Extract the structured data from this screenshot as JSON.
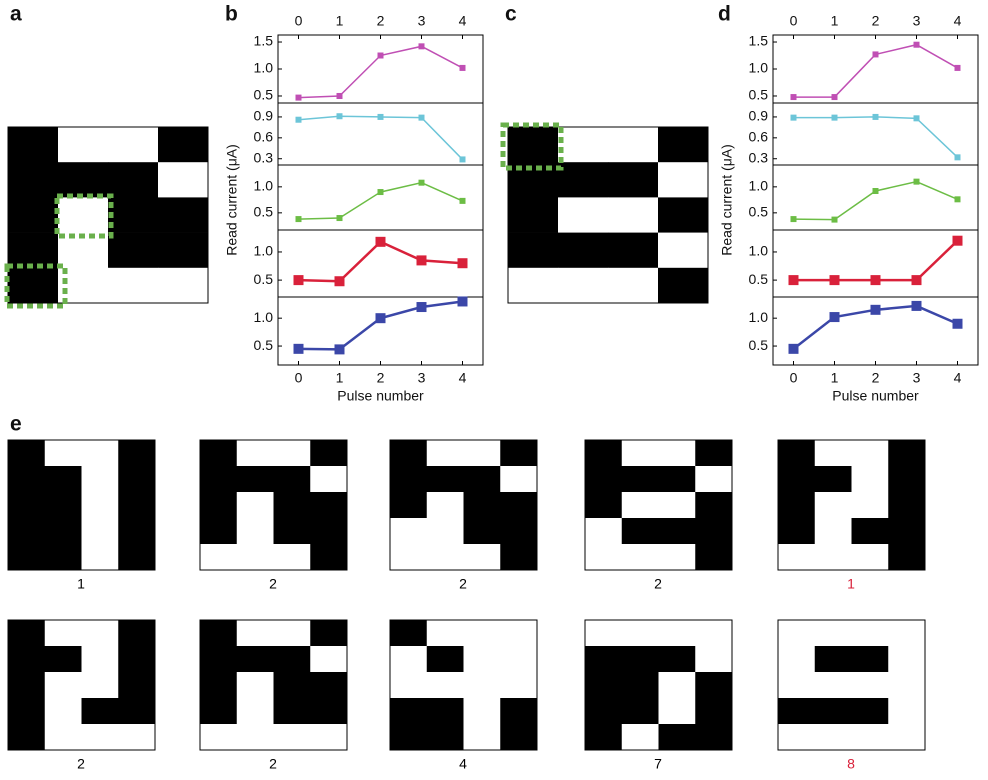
{
  "chart_data": [
    {
      "type": "line",
      "panel_label": "b",
      "x": [
        0,
        1,
        2,
        3,
        4
      ],
      "xlim": [
        -0.5,
        4.5
      ],
      "xticks": [
        0,
        1,
        2,
        3,
        4
      ],
      "xlabel": "Pulse number",
      "ylabel": "Read current (μA)",
      "subplots": [
        {
          "color": "#c04fb4",
          "ylim": [
            0.37,
            1.63
          ],
          "yticks": [
            0.5,
            {
              "value": 1,
              "label": "1.0"
            },
            1.5
          ],
          "values": [
            0.47,
            0.5,
            1.25,
            1.42,
            1.02
          ]
        },
        {
          "color": "#6cc5d8",
          "ylim": [
            0.21,
            1.1
          ],
          "yticks": [
            0.3,
            0.6,
            0.9
          ],
          "values": [
            0.86,
            0.91,
            0.9,
            0.89,
            0.29
          ]
        },
        {
          "color": "#6cbd45",
          "ylim": [
            0.17,
            1.42
          ],
          "yticks": [
            0.5,
            {
              "value": 1,
              "label": "1.0"
            }
          ],
          "values": [
            0.38,
            0.4,
            0.9,
            1.08,
            0.73
          ]
        },
        {
          "color": "#d9213a",
          "ylim": [
            0.2,
            1.39
          ],
          "yticks": [
            0.5,
            {
              "value": 1,
              "label": "1.0"
            }
          ],
          "values": [
            0.5,
            0.48,
            1.18,
            0.85,
            0.8
          ]
        },
        {
          "color": "#3b47a8",
          "ylim": [
            0.16,
            1.38
          ],
          "yticks": [
            0.5,
            {
              "value": 1,
              "label": "1.0"
            }
          ],
          "values": [
            0.45,
            0.44,
            1.0,
            1.2,
            1.3
          ]
        }
      ]
    },
    {
      "type": "line",
      "panel_label": "d",
      "x": [
        0,
        1,
        2,
        3,
        4
      ],
      "xlim": [
        -0.5,
        4.5
      ],
      "xticks": [
        0,
        1,
        2,
        3,
        4
      ],
      "xlabel": "Pulse number",
      "ylabel": "Read current (μA)",
      "subplots": [
        {
          "color": "#c04fb4",
          "ylim": [
            0.37,
            1.63
          ],
          "yticks": [
            0.5,
            {
              "value": 1,
              "label": "1.0"
            },
            1.5
          ],
          "values": [
            0.48,
            0.48,
            1.27,
            1.45,
            1.02
          ]
        },
        {
          "color": "#6cc5d8",
          "ylim": [
            0.21,
            1.1
          ],
          "yticks": [
            0.3,
            0.6,
            0.9
          ],
          "values": [
            0.89,
            0.89,
            0.9,
            0.88,
            0.32
          ]
        },
        {
          "color": "#6cbd45",
          "ylim": [
            0.17,
            1.42
          ],
          "yticks": [
            0.5,
            {
              "value": 1,
              "label": "1.0"
            }
          ],
          "values": [
            0.38,
            0.37,
            0.92,
            1.1,
            0.76
          ]
        },
        {
          "color": "#d9213a",
          "ylim": [
            0.2,
            1.39
          ],
          "yticks": [
            0.5,
            {
              "value": 1,
              "label": "1.0"
            }
          ],
          "values": [
            0.5,
            0.5,
            0.5,
            0.5,
            1.2
          ]
        },
        {
          "color": "#3b47a8",
          "ylim": [
            0.16,
            1.38
          ],
          "yticks": [
            0.5,
            {
              "value": 1,
              "label": "1.0"
            }
          ],
          "values": [
            0.45,
            1.02,
            1.15,
            1.22,
            0.9
          ]
        }
      ]
    }
  ],
  "images": [
    {
      "panel_label": "a",
      "cells": [
        [
          1,
          0,
          0,
          1
        ],
        [
          1,
          1,
          1,
          0
        ],
        [
          1,
          0,
          1,
          1
        ],
        [
          1,
          0,
          1,
          1
        ],
        [
          1,
          0,
          0,
          0
        ]
      ]
    },
    {
      "panel_label": "c",
      "cells": [
        [
          1,
          0,
          0,
          1
        ],
        [
          1,
          1,
          1,
          0
        ],
        [
          1,
          0,
          0,
          1
        ],
        [
          1,
          1,
          1,
          0
        ],
        [
          0,
          0,
          0,
          1
        ]
      ]
    }
  ],
  "panel_e": {
    "panel_label": "e",
    "items": [
      {
        "cells": [
          [
            1,
            0,
            0,
            1
          ],
          [
            1,
            1,
            0,
            1
          ],
          [
            1,
            1,
            0,
            1
          ],
          [
            1,
            1,
            0,
            1
          ],
          [
            1,
            1,
            0,
            1
          ]
        ],
        "label": "1",
        "label_color": "#000000"
      },
      {
        "cells": [
          [
            1,
            0,
            0,
            1
          ],
          [
            1,
            1,
            1,
            0
          ],
          [
            1,
            0,
            1,
            1
          ],
          [
            1,
            0,
            1,
            1
          ],
          [
            0,
            0,
            0,
            1
          ]
        ],
        "label": "2",
        "label_color": "#000000"
      },
      {
        "cells": [
          [
            1,
            0,
            0,
            1
          ],
          [
            1,
            1,
            1,
            0
          ],
          [
            1,
            0,
            1,
            1
          ],
          [
            0,
            0,
            1,
            1
          ],
          [
            0,
            0,
            0,
            1
          ]
        ],
        "label": "2",
        "label_color": "#000000"
      },
      {
        "cells": [
          [
            1,
            0,
            0,
            1
          ],
          [
            1,
            1,
            1,
            0
          ],
          [
            1,
            0,
            0,
            1
          ],
          [
            0,
            1,
            1,
            1
          ],
          [
            0,
            0,
            0,
            1
          ]
        ],
        "label": "2",
        "label_color": "#000000"
      },
      {
        "cells": [
          [
            1,
            0,
            0,
            1
          ],
          [
            1,
            1,
            0,
            1
          ],
          [
            1,
            0,
            0,
            1
          ],
          [
            1,
            0,
            1,
            1
          ],
          [
            0,
            0,
            0,
            1
          ]
        ],
        "label": "1",
        "label_color": "#d9213a"
      },
      {
        "cells": [
          [
            1,
            0,
            0,
            1
          ],
          [
            1,
            1,
            0,
            1
          ],
          [
            1,
            0,
            0,
            1
          ],
          [
            1,
            0,
            1,
            1
          ],
          [
            1,
            0,
            0,
            0
          ]
        ],
        "label": "2",
        "label_color": "#000000"
      },
      {
        "cells": [
          [
            1,
            0,
            0,
            1
          ],
          [
            1,
            1,
            1,
            0
          ],
          [
            1,
            0,
            1,
            1
          ],
          [
            1,
            0,
            1,
            1
          ],
          [
            0,
            0,
            0,
            0
          ]
        ],
        "label": "2",
        "label_color": "#000000"
      },
      {
        "cells": [
          [
            1,
            0,
            0,
            0
          ],
          [
            0,
            1,
            0,
            0
          ],
          [
            0,
            0,
            0,
            0
          ],
          [
            1,
            1,
            0,
            1
          ],
          [
            1,
            1,
            0,
            1
          ]
        ],
        "label": "4",
        "label_color": "#000000"
      },
      {
        "cells": [
          [
            0,
            0,
            0,
            0
          ],
          [
            1,
            1,
            1,
            0
          ],
          [
            1,
            1,
            0,
            1
          ],
          [
            1,
            1,
            0,
            1
          ],
          [
            1,
            0,
            1,
            1
          ]
        ],
        "label": "7",
        "label_color": "#000000"
      },
      {
        "cells": [
          [
            0,
            0,
            0,
            0
          ],
          [
            0,
            1,
            1,
            0
          ],
          [
            0,
            0,
            0,
            0
          ],
          [
            1,
            1,
            1,
            0
          ],
          [
            0,
            0,
            0,
            0
          ]
        ],
        "label": "8",
        "label_color": "#d9213a"
      }
    ]
  }
}
